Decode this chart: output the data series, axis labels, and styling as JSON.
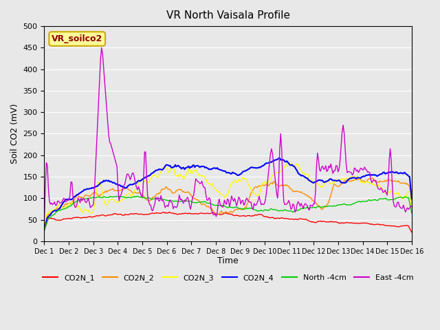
{
  "title": "VR North Vaisala Profile",
  "ylabel": "Soil CO2 (mV)",
  "xlabel": "Time",
  "ylim": [
    0,
    500
  ],
  "xlim": [
    0,
    15
  ],
  "background_color": "#e8e8e8",
  "plot_bg_color": "#e8e8e8",
  "annotation_text": "VR_soilco2",
  "annotation_color": "#8B0000",
  "annotation_bg": "#ffff99",
  "annotation_border": "#ccaa00",
  "xtick_labels": [
    "Dec 1",
    "Dec 2",
    "Dec 3",
    "Dec 4",
    "Dec 5",
    "Dec 6",
    "Dec 7",
    "Dec 8",
    "Dec 9",
    "Dec 10",
    "Dec 11",
    "Dec 12",
    "Dec 13",
    "Dec 14",
    "Dec 15",
    "Dec 16"
  ],
  "ytick_labels": [
    0,
    50,
    100,
    150,
    200,
    250,
    300,
    350,
    400,
    450,
    500
  ],
  "legend_entries": [
    "CO2N_1",
    "CO2N_2",
    "CO2N_3",
    "CO2N_4",
    "North -4cm",
    "East -4cm"
  ],
  "line_colors": [
    "#ff0000",
    "#ff8c00",
    "#ffff00",
    "#0000ff",
    "#00cc00",
    "#cc00cc"
  ],
  "line_widths": [
    1.0,
    1.0,
    1.0,
    1.5,
    1.0,
    1.0
  ],
  "n_points": 360
}
